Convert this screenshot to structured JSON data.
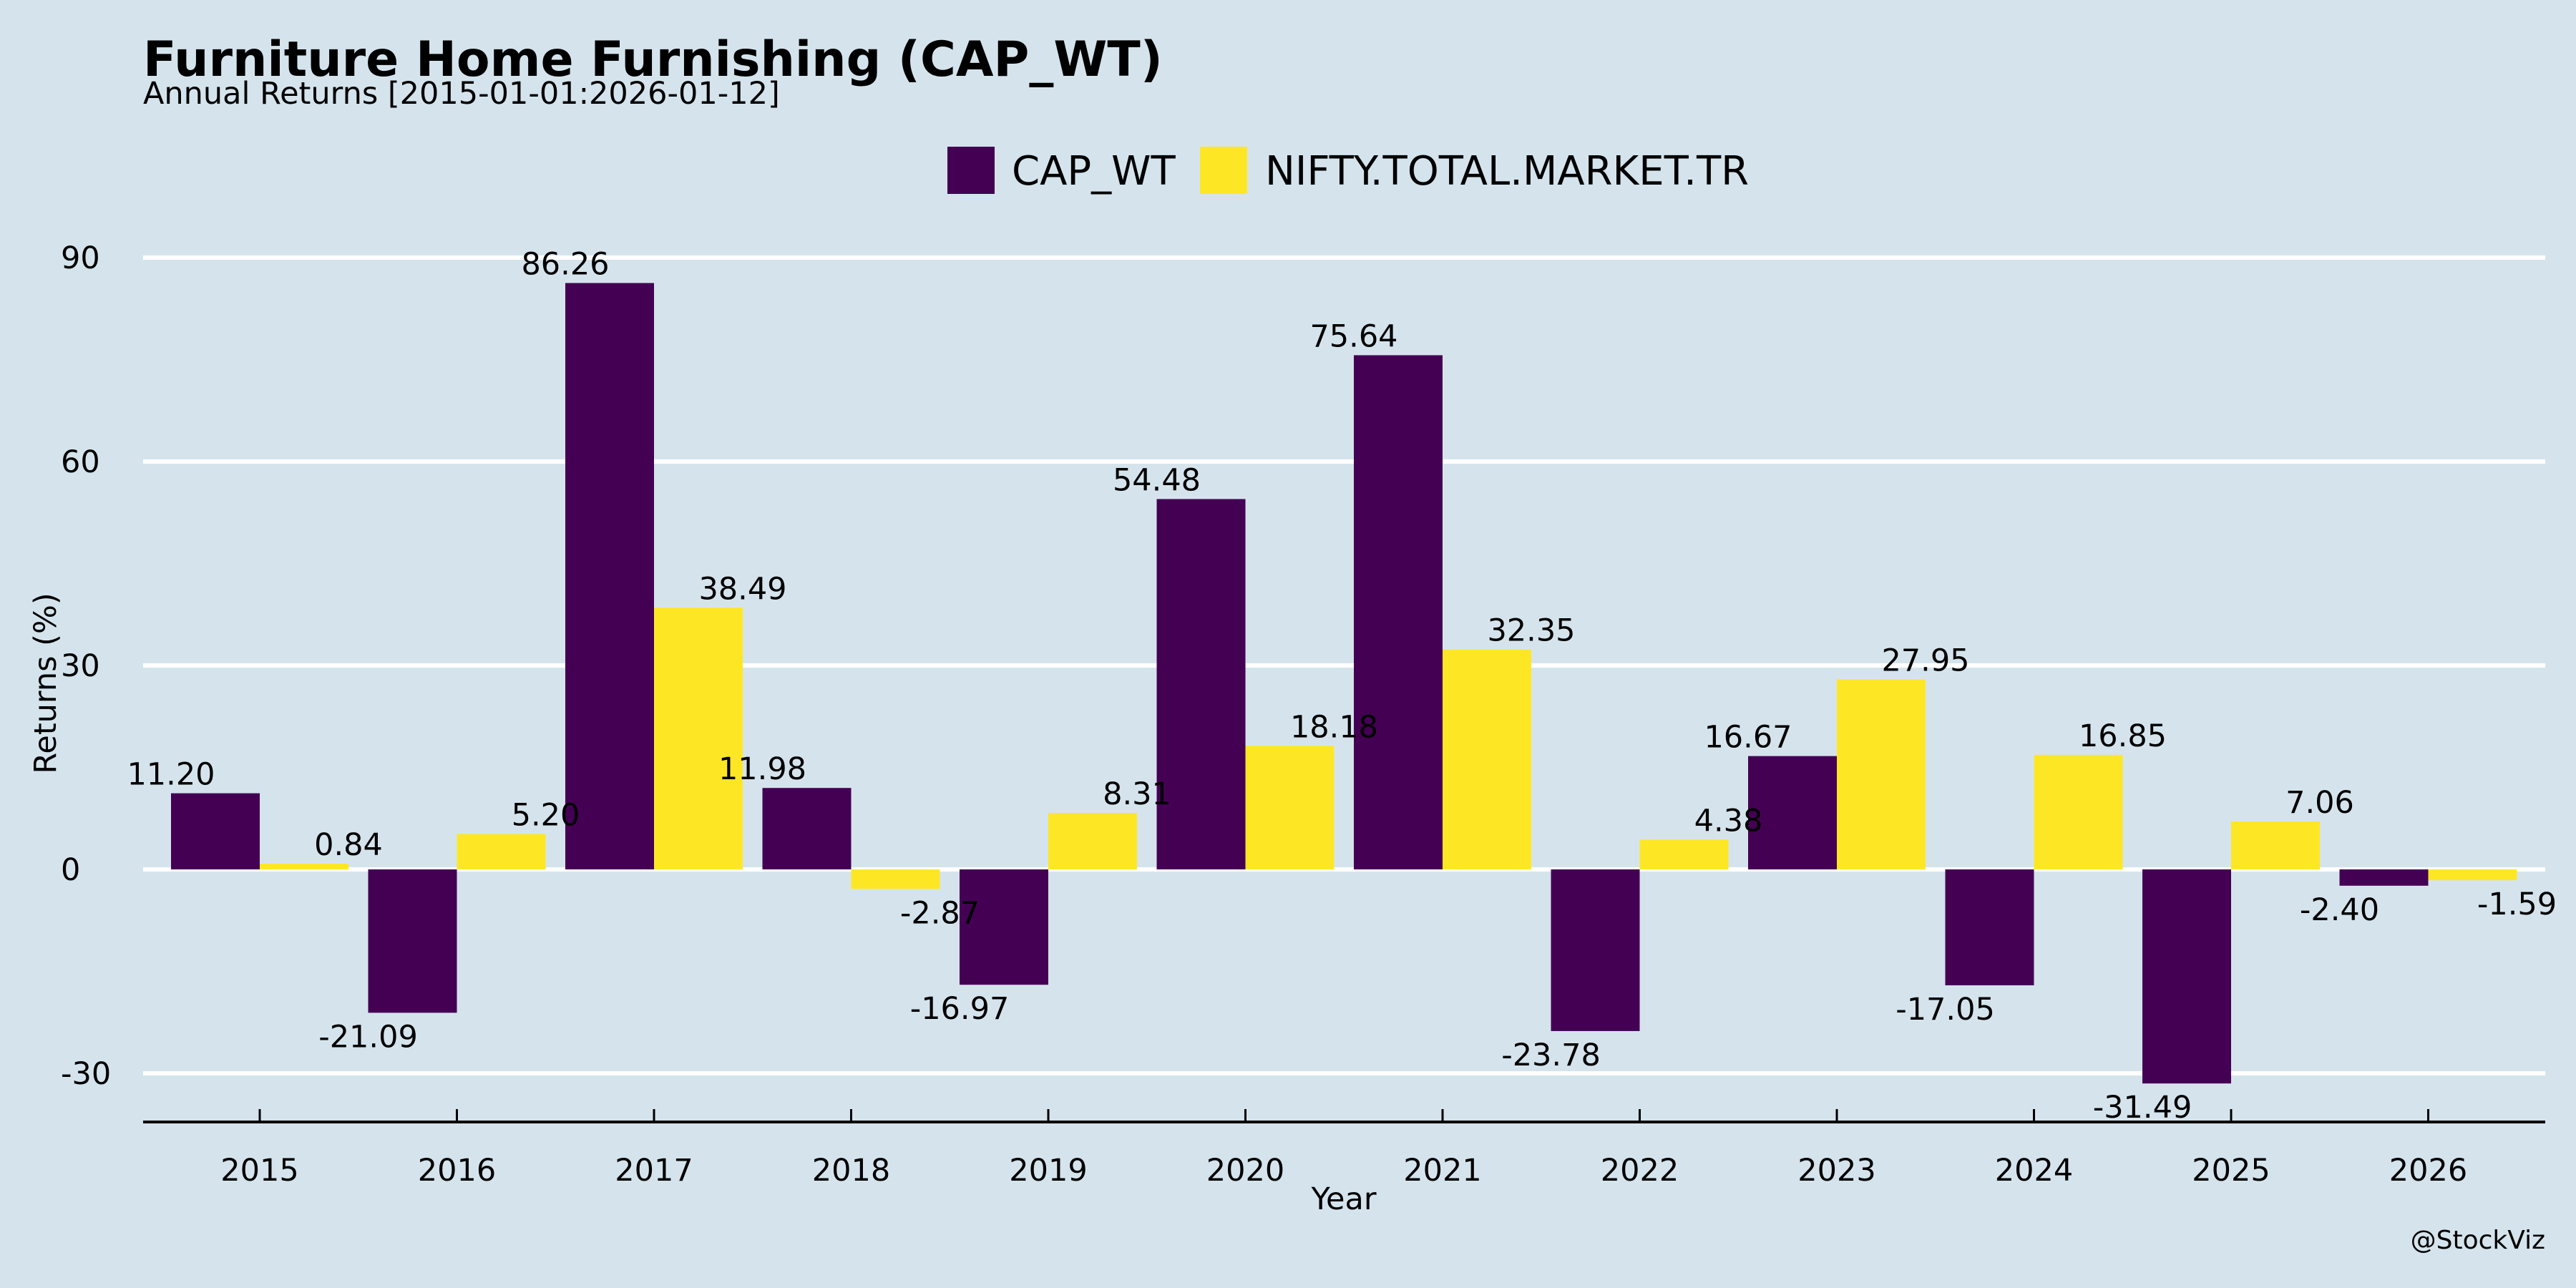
{
  "chart_data": {
    "type": "bar",
    "title": "Furniture Home Furnishing (CAP_WT)",
    "subtitle": "Annual Returns [2015-01-01:2026-01-12]",
    "xlabel": "Year",
    "ylabel": "Returns (%)",
    "ylim": [
      -37,
      95
    ],
    "yticks": [
      -30,
      0,
      30,
      60,
      90
    ],
    "grid": true,
    "legend_position": "top-center",
    "categories": [
      "2015",
      "2016",
      "2017",
      "2018",
      "2019",
      "2020",
      "2021",
      "2022",
      "2023",
      "2024",
      "2025",
      "2026"
    ],
    "series": [
      {
        "name": "CAP_WT",
        "color": "#440154",
        "values": [
          11.2,
          -21.09,
          86.26,
          11.98,
          -16.97,
          54.48,
          75.64,
          -23.78,
          16.67,
          -17.05,
          -31.49,
          -2.4
        ],
        "labels": [
          "11.20",
          "-21.09",
          "86.26",
          "11.98",
          "-16.97",
          "54.48",
          "75.64",
          "-23.78",
          "16.67",
          "-17.05",
          "-31.49",
          "-2.40"
        ]
      },
      {
        "name": "NIFTY.TOTAL.MARKET.TR",
        "color": "#fde725",
        "values": [
          0.84,
          5.2,
          38.49,
          -2.87,
          8.31,
          18.18,
          32.35,
          4.38,
          27.95,
          16.85,
          7.06,
          -1.59
        ],
        "labels": [
          "0.84",
          "5.20",
          "38.49",
          "-2.87",
          "8.31",
          "18.18",
          "32.35",
          "4.38",
          "27.95",
          "16.85",
          "7.06",
          "-1.59"
        ]
      }
    ],
    "credit": "@StockViz"
  },
  "colors": {
    "background": "#d5e4ec",
    "grid": "#ffffff",
    "axis": "#000000"
  }
}
